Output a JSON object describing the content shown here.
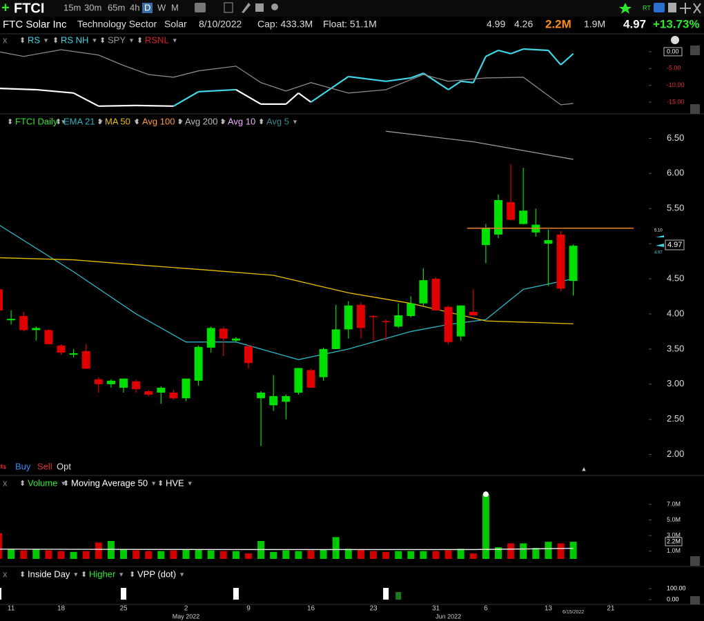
{
  "header": {
    "symbol": "FTCI",
    "timeframes": [
      "15m",
      "30m",
      "65m",
      "4h",
      "D",
      "W",
      "M"
    ],
    "active_timeframe": 4
  },
  "info": {
    "name": "FTC Solar Inc",
    "sector": "Technology Sector",
    "industry": "Solar",
    "date": "8/10/2022",
    "cap": "Cap: 433.3M",
    "float": "Float: 51.1M",
    "high": "4.99",
    "low": "4.26",
    "volume": "2.2M",
    "avg_volume": "1.9M",
    "last": "4.97",
    "change": "+13.73%"
  },
  "trade_buttons": [
    "Buy",
    "Sell",
    "Opt"
  ],
  "chart_data": [
    {
      "type": "line",
      "legend": [
        {
          "name": "RS",
          "color": "#3fd6e6"
        },
        {
          "name": "RS NH",
          "color": "#3fd6e6"
        },
        {
          "name": "SPY",
          "color": "#9a9a9a"
        },
        {
          "name": "RSNL",
          "color": "#e02020"
        }
      ],
      "ylim": [
        -18,
        4.5
      ],
      "yticks": [
        {
          "value": 0,
          "label": "0.00"
        },
        {
          "value": -5,
          "label": "-5.00"
        },
        {
          "value": -10,
          "label": "-10.00"
        },
        {
          "value": -15,
          "label": "-15.00"
        }
      ],
      "series": [
        {
          "color": "#ffffff",
          "x": [
            0,
            3,
            6,
            8,
            11,
            14,
            16,
            19,
            21,
            23,
            24,
            25,
            28,
            31,
            33,
            34,
            36,
            37,
            38,
            39,
            40,
            41,
            42,
            44,
            45,
            46
          ],
          "values": [
            -10.9,
            -11.3,
            -12.3,
            -16.2,
            -16.0,
            -16.2,
            -11.9,
            -11.3,
            -15.6,
            -15.6,
            -12.3,
            -15.0,
            -7.4,
            -8.8,
            -7.8,
            -6.4,
            -11.3,
            -8.8,
            -9.2,
            -1.4,
            0.4,
            -0.6,
            0.8,
            0.4,
            -3.9,
            -0.6
          ],
          "segment_colors": [
            "#ffffff",
            "#ffffff",
            "#ffffff",
            "#ffffff",
            "#ffffff",
            "#ffffff",
            "#3fd6e6",
            "#3fd6e6",
            "#ffffff",
            "#ffffff",
            "#ffffff",
            "#ffffff",
            "#3fd6e6",
            "#3fd6e6",
            "#3fd6e6",
            "#3fd6e6",
            "#3fd6e6",
            "#3fd6e6",
            "#3fd6e6",
            "#3fd6e6",
            "#3fd6e6",
            "#3fd6e6",
            "#3fd6e6",
            "#3fd6e6",
            "#3fd6e6",
            "#3fd6e6"
          ]
        },
        {
          "color": "#8a8a8a",
          "x": [
            0,
            2,
            5,
            8,
            10,
            12,
            14,
            16,
            19,
            21,
            23,
            25,
            28,
            31,
            34,
            36,
            39,
            42,
            45,
            46
          ],
          "values": [
            0.0,
            -1.4,
            0.6,
            -1.0,
            -4.1,
            -6.8,
            -7.6,
            -5.7,
            -4.3,
            -9.2,
            -11.7,
            -9.2,
            -12.3,
            -11.3,
            -6.8,
            -8.8,
            -7.8,
            -7.6,
            -15.8,
            -15.4
          ]
        }
      ]
    },
    {
      "type": "candlestick",
      "legend": [
        {
          "name": "FTCI Daily",
          "color": "#2ee82e"
        },
        {
          "name": "EMA 21",
          "color": "#2ab7c4"
        },
        {
          "name": "MA 50",
          "color": "#e8c000"
        },
        {
          "name": "Avg 100",
          "color": "#ff9a3c"
        },
        {
          "name": "Avg 200",
          "color": "#bbbbbb"
        },
        {
          "name": "Avg 10",
          "color": "#f0b0ff"
        },
        {
          "name": "Avg 5",
          "color": "#3a8a8a"
        }
      ],
      "up_color": "#00e000",
      "down_color": "#e00000",
      "ylim": [
        1.8,
        6.6
      ],
      "yticks": [
        {
          "value": 6.5,
          "label": "6.50"
        },
        {
          "value": 6,
          "label": "6.00"
        },
        {
          "value": 5.5,
          "label": "5.50"
        },
        {
          "value": 5,
          "label": "5.00"
        },
        {
          "value": 4.5,
          "label": "4.50"
        },
        {
          "value": 4,
          "label": "4.00"
        },
        {
          "value": 3.5,
          "label": "3.50"
        },
        {
          "value": 3,
          "label": "3.00"
        },
        {
          "value": 2.5,
          "label": "2.50"
        },
        {
          "value": 2,
          "label": "2.00"
        }
      ],
      "open": [
        4.35,
        3.91,
        3.97,
        3.77,
        3.77,
        3.55,
        3.42,
        3.47,
        3.07,
        3.0,
        2.95,
        3.04,
        2.9,
        2.88,
        2.88,
        2.8,
        3.05,
        3.52,
        3.79,
        3.62,
        3.54,
        2.8,
        2.7,
        2.75,
        2.88,
        3.2,
        3.1,
        3.5,
        3.78,
        4.13,
        3.97,
        3.9,
        3.82,
        3.97,
        4.15,
        4.5,
        4.1,
        3.68,
        4.03,
        4.98,
        5.13,
        5.59,
        5.28,
        5.16,
        5.0,
        5.13,
        4.47
      ],
      "high": [
        4.35,
        4.05,
        4.03,
        3.82,
        3.78,
        3.57,
        3.5,
        3.57,
        3.1,
        3.07,
        3.08,
        3.06,
        2.92,
        2.97,
        2.92,
        3.08,
        3.55,
        3.82,
        3.82,
        3.67,
        3.56,
        2.9,
        3.13,
        2.85,
        3.23,
        3.22,
        3.52,
        4.13,
        4.18,
        4.16,
        3.98,
        3.92,
        4.15,
        4.25,
        4.65,
        4.52,
        4.12,
        4.12,
        4.35,
        5.28,
        5.7,
        6.13,
        6.08,
        5.5,
        5.2,
        5.18,
        4.99
      ],
      "low": [
        4.05,
        3.85,
        3.75,
        3.62,
        3.57,
        3.42,
        3.38,
        3.22,
        2.88,
        2.95,
        2.88,
        2.88,
        2.83,
        2.72,
        2.78,
        2.76,
        2.98,
        3.45,
        3.4,
        3.6,
        3.22,
        2.12,
        2.62,
        2.5,
        2.85,
        2.95,
        3.05,
        3.5,
        3.65,
        3.65,
        3.62,
        3.62,
        3.8,
        3.95,
        4.12,
        4.05,
        3.57,
        3.62,
        3.98,
        4.72,
        5.08,
        5.33,
        5.27,
        5.1,
        4.4,
        4.32,
        4.26
      ],
      "close": [
        4.05,
        3.93,
        3.77,
        3.8,
        3.57,
        3.45,
        3.44,
        3.22,
        3.0,
        3.05,
        3.08,
        2.93,
        2.85,
        2.95,
        2.8,
        3.08,
        3.53,
        3.8,
        3.65,
        3.65,
        3.3,
        2.88,
        2.83,
        2.83,
        3.23,
        2.95,
        3.5,
        3.78,
        4.12,
        3.8,
        3.96,
        3.89,
        3.98,
        4.15,
        4.48,
        4.05,
        3.6,
        4.12,
        3.98,
        5.22,
        5.62,
        5.34,
        5.47,
        5.27,
        5.05,
        4.36,
        4.97
      ],
      "lines": [
        {
          "color": "#2ab7c4",
          "x": [
            0,
            6,
            11,
            15,
            19,
            24,
            28,
            33,
            36,
            39,
            42,
            46
          ],
          "values": [
            5.27,
            4.6,
            4.0,
            3.6,
            3.6,
            3.35,
            3.5,
            3.75,
            3.85,
            3.92,
            4.35,
            4.5
          ]
        },
        {
          "color": "#e8c000",
          "x": [
            0,
            6,
            11,
            17,
            22,
            28,
            33,
            39,
            46
          ],
          "values": [
            4.8,
            4.77,
            4.7,
            4.62,
            4.55,
            4.3,
            4.15,
            3.9,
            3.86
          ]
        },
        {
          "color": "#9a9a9a",
          "x": [
            31,
            38,
            46
          ],
          "values": [
            6.6,
            6.45,
            6.2
          ]
        }
      ],
      "hline": {
        "value": 5.22,
        "color": "#e8822a",
        "from": 37.5
      },
      "side_labels": [
        "5.10",
        "4.97"
      ],
      "x_labels": [
        {
          "label": "11",
          "x": 1
        },
        {
          "label": "18",
          "x": 5
        },
        {
          "label": "25",
          "x": 10
        },
        {
          "label": "2",
          "x": 15
        },
        {
          "label": "9",
          "x": 20
        },
        {
          "label": "16",
          "x": 25
        },
        {
          "label": "23",
          "x": 30
        },
        {
          "label": "31",
          "x": 35
        },
        {
          "label": "6",
          "x": 39
        },
        {
          "label": "13",
          "x": 44
        },
        {
          "label": "21",
          "x": 49
        }
      ],
      "month_labels": [
        {
          "label": "May 2022",
          "x": 15
        },
        {
          "label": "Jun 2022",
          "x": 36
        }
      ],
      "cursor_label": {
        "label": "6/15/2022",
        "x": 46
      }
    },
    {
      "type": "bar",
      "legend": [
        {
          "name": "Volume",
          "color": "#2ee82e"
        },
        {
          "name": "Moving Average 50",
          "color": "#ffffff"
        },
        {
          "name": "HVE",
          "color": "#ffffff"
        }
      ],
      "ylim": [
        0,
        9000000
      ],
      "yticks": [
        {
          "value": 7000000,
          "label": "7.0M"
        },
        {
          "value": 5000000,
          "label": "5.0M"
        },
        {
          "value": 3000000,
          "label": "3.0M"
        },
        {
          "value": 1000000,
          "label": "1.0M"
        }
      ],
      "values": [
        3300000,
        1200000,
        1100000,
        1200000,
        1100000,
        1000000,
        900000,
        1000000,
        2100000,
        2300000,
        1200000,
        1100000,
        1000000,
        1000000,
        1100000,
        1200000,
        1200000,
        1100000,
        1000000,
        1000000,
        700000,
        2300000,
        900000,
        1100000,
        1000000,
        1100000,
        1200000,
        2800000,
        1300000,
        1200000,
        1000000,
        900000,
        1000000,
        1000000,
        1000000,
        1000000,
        1100000,
        1300000,
        700000,
        8300000,
        1500000,
        2000000,
        2000000,
        1400000,
        2200000,
        2000000,
        2200000
      ],
      "ma": {
        "color": "#ffffff",
        "x": [
          0,
          20,
          38,
          46
        ],
        "values": [
          1250000,
          1200000,
          1200000,
          1350000
        ]
      },
      "hve_index": 39
    },
    {
      "type": "event",
      "legend": [
        {
          "name": "Inside Day",
          "color": "#ffffff"
        },
        {
          "name": "Higher",
          "color": "#2ee82e"
        },
        {
          "name": "VPP (dot)",
          "color": "#ffffff"
        }
      ],
      "ylim": [
        0,
        100
      ],
      "yticks": [
        {
          "value": 100,
          "label": "100.00"
        },
        {
          "value": 0,
          "label": "0.00"
        }
      ],
      "inside_day": [
        0,
        10,
        19,
        31
      ],
      "higher": [
        32
      ]
    }
  ]
}
